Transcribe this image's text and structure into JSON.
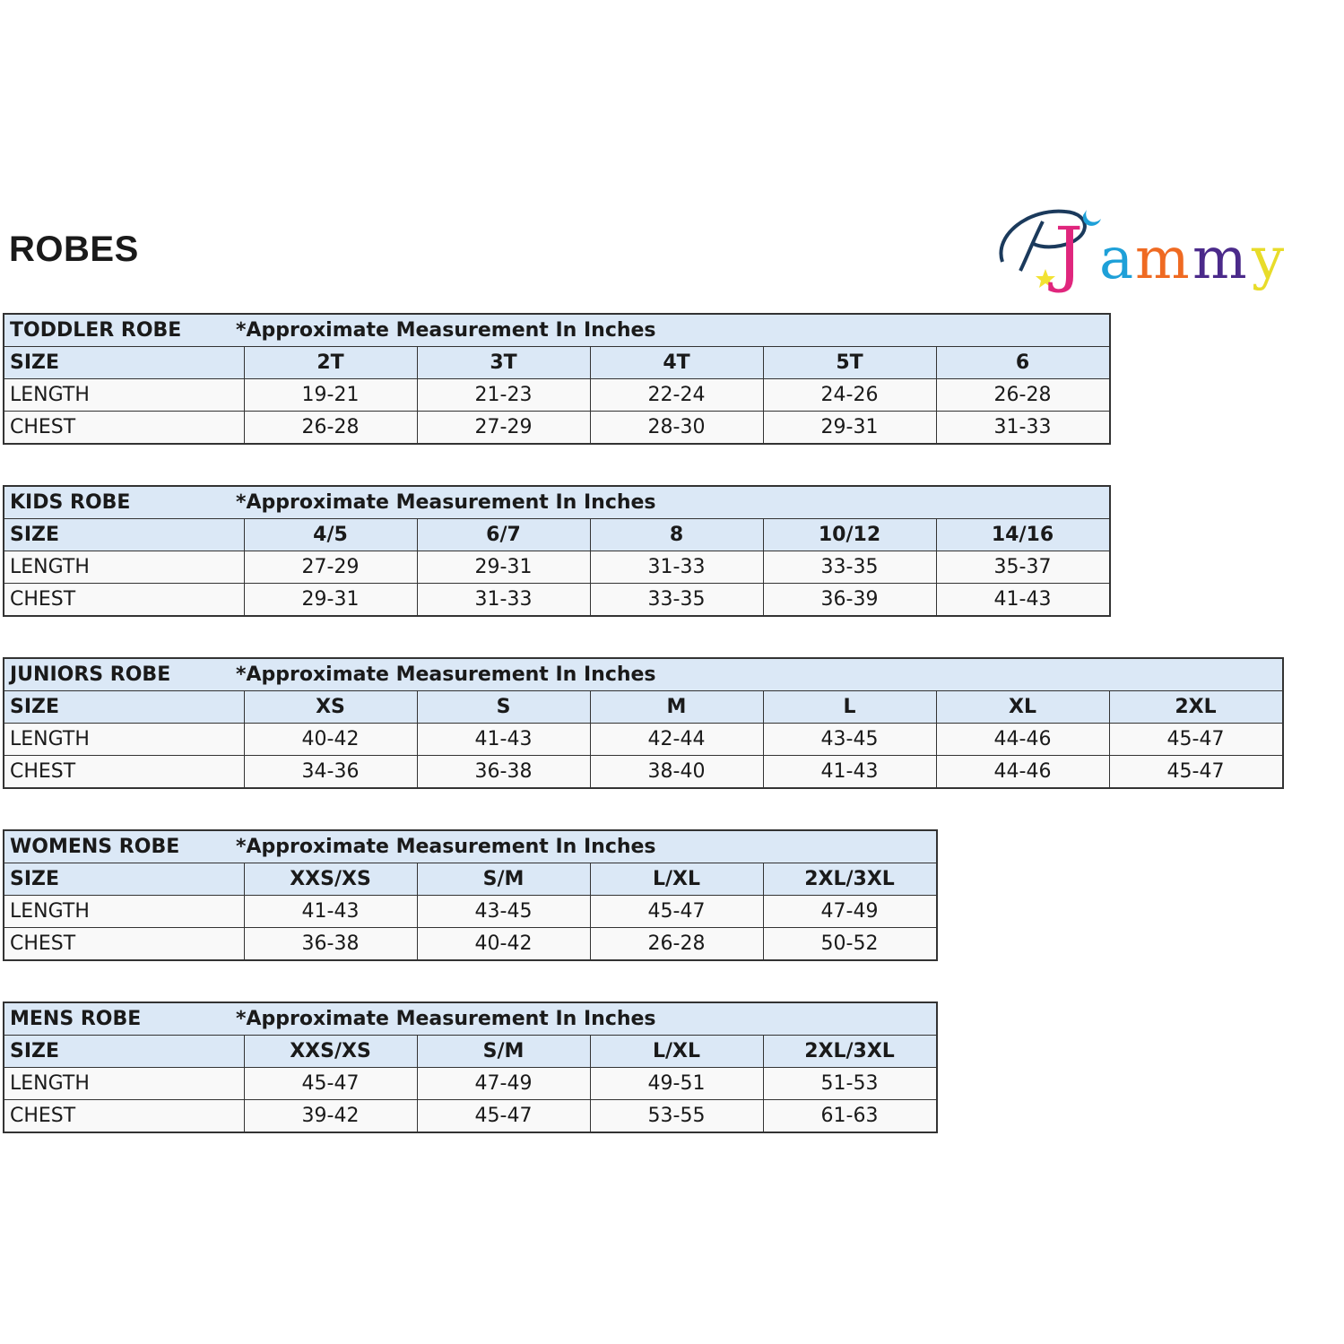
{
  "page_title": "ROBES",
  "logo": {
    "text": "PJammy",
    "colors": {
      "P": "#1b3a5c",
      "J": "#e0267d",
      "a": "#1ea0d8",
      "m1": "#ef6a22",
      "m2": "#4b2a8a",
      "y": "#f2e233",
      "star": "#f2e233",
      "moon": "#1ea0d8"
    }
  },
  "colors": {
    "header_bg": "#dbe8f6",
    "row_bg": "#f9f9f9",
    "border": "#333333"
  },
  "tables": [
    {
      "name": "TODDLER ROBE",
      "note": "*Approximate Measurement In Inches",
      "size_label": "SIZE",
      "sizes": [
        "2T",
        "3T",
        "4T",
        "5T",
        "6"
      ],
      "rows": [
        {
          "label": "LENGTH",
          "values": [
            "19-21",
            "21-23",
            "22-24",
            "24-26",
            "26-28"
          ]
        },
        {
          "label": "CHEST",
          "values": [
            "26-28",
            "27-29",
            "28-30",
            "29-31",
            "31-33"
          ]
        }
      ]
    },
    {
      "name": "KIDS ROBE",
      "note": "*Approximate Measurement In Inches",
      "size_label": "SIZE",
      "sizes": [
        "4/5",
        "6/7",
        "8",
        "10/12",
        "14/16"
      ],
      "rows": [
        {
          "label": "LENGTH",
          "values": [
            "27-29",
            "29-31",
            "31-33",
            "33-35",
            "35-37"
          ]
        },
        {
          "label": "CHEST",
          "values": [
            "29-31",
            "31-33",
            "33-35",
            "36-39",
            "41-43"
          ]
        }
      ]
    },
    {
      "name": "JUNIORS ROBE",
      "note": "*Approximate Measurement In Inches",
      "size_label": "SIZE",
      "sizes": [
        "XS",
        "S",
        "M",
        "L",
        "XL",
        "2XL"
      ],
      "rows": [
        {
          "label": "LENGTH",
          "values": [
            "40-42",
            "41-43",
            "42-44",
            "43-45",
            "44-46",
            "45-47"
          ]
        },
        {
          "label": "CHEST",
          "values": [
            "34-36",
            "36-38",
            "38-40",
            "41-43",
            "44-46",
            "45-47"
          ]
        }
      ]
    },
    {
      "name": "WOMENS ROBE",
      "note": "*Approximate Measurement In Inches",
      "size_label": "SIZE",
      "sizes": [
        "XXS/XS",
        "S/M",
        "L/XL",
        "2XL/3XL"
      ],
      "rows": [
        {
          "label": "LENGTH",
          "values": [
            "41-43",
            "43-45",
            "45-47",
            "47-49"
          ]
        },
        {
          "label": "CHEST",
          "values": [
            "36-38",
            "40-42",
            "26-28",
            "50-52"
          ]
        }
      ]
    },
    {
      "name": "MENS ROBE",
      "note": "*Approximate Measurement In Inches",
      "size_label": "SIZE",
      "sizes": [
        "XXS/XS",
        "S/M",
        "L/XL",
        "2XL/3XL"
      ],
      "rows": [
        {
          "label": "LENGTH",
          "values": [
            "45-47",
            "47-49",
            "49-51",
            "51-53"
          ]
        },
        {
          "label": "CHEST",
          "values": [
            "39-42",
            "45-47",
            "53-55",
            "61-63"
          ]
        }
      ]
    }
  ]
}
